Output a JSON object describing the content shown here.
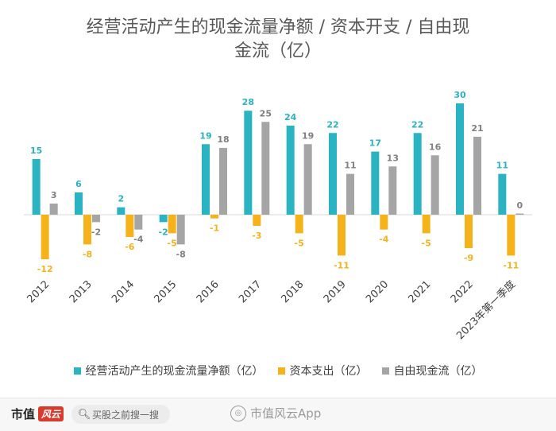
{
  "chart_data": {
    "type": "bar",
    "title": "经营活动产生的现金流量净额 / 资本开支 / 自由现金流（亿）",
    "title_lines": [
      "经营活动产生的现金流量净额 / 资本开支 / 自由现",
      "金流（亿）"
    ],
    "categories": [
      "2012",
      "2013",
      "2014",
      "2015",
      "2016",
      "2017",
      "2018",
      "2019",
      "2020",
      "2021",
      "2022",
      "2023年第一季度"
    ],
    "series": [
      {
        "name": "经营活动产生的现金流量净额（亿）",
        "color": "#2ab3c0",
        "label_color": "#2ab3c0",
        "values": [
          15,
          6,
          2,
          -2,
          19,
          28,
          24,
          22,
          17,
          22,
          30,
          11
        ]
      },
      {
        "name": "资本支出（亿）",
        "color": "#f5b21b",
        "label_color": "#f5b21b",
        "values": [
          -12,
          -8,
          -6,
          -5,
          -1,
          -3,
          -5,
          -11,
          -4,
          -5,
          -9,
          -11
        ]
      },
      {
        "name": "自由现金流（亿）",
        "color": "#a5a5a5",
        "label_color": "#7f7f7f",
        "values": [
          3,
          -2,
          -4,
          -8,
          18,
          25,
          19,
          11,
          13,
          16,
          21,
          0
        ]
      }
    ],
    "ylim": [
      -15,
      35
    ],
    "grid": false,
    "legend": "bottom",
    "xlabel": "",
    "ylabel": ""
  },
  "footer": {
    "brand": "市值",
    "brand_tag": "风云",
    "search_placeholder": "买股之前搜一搜",
    "watermark": "市值风云App",
    "icons": {
      "search": "search-icon",
      "watermark": "weibo-icon"
    }
  }
}
